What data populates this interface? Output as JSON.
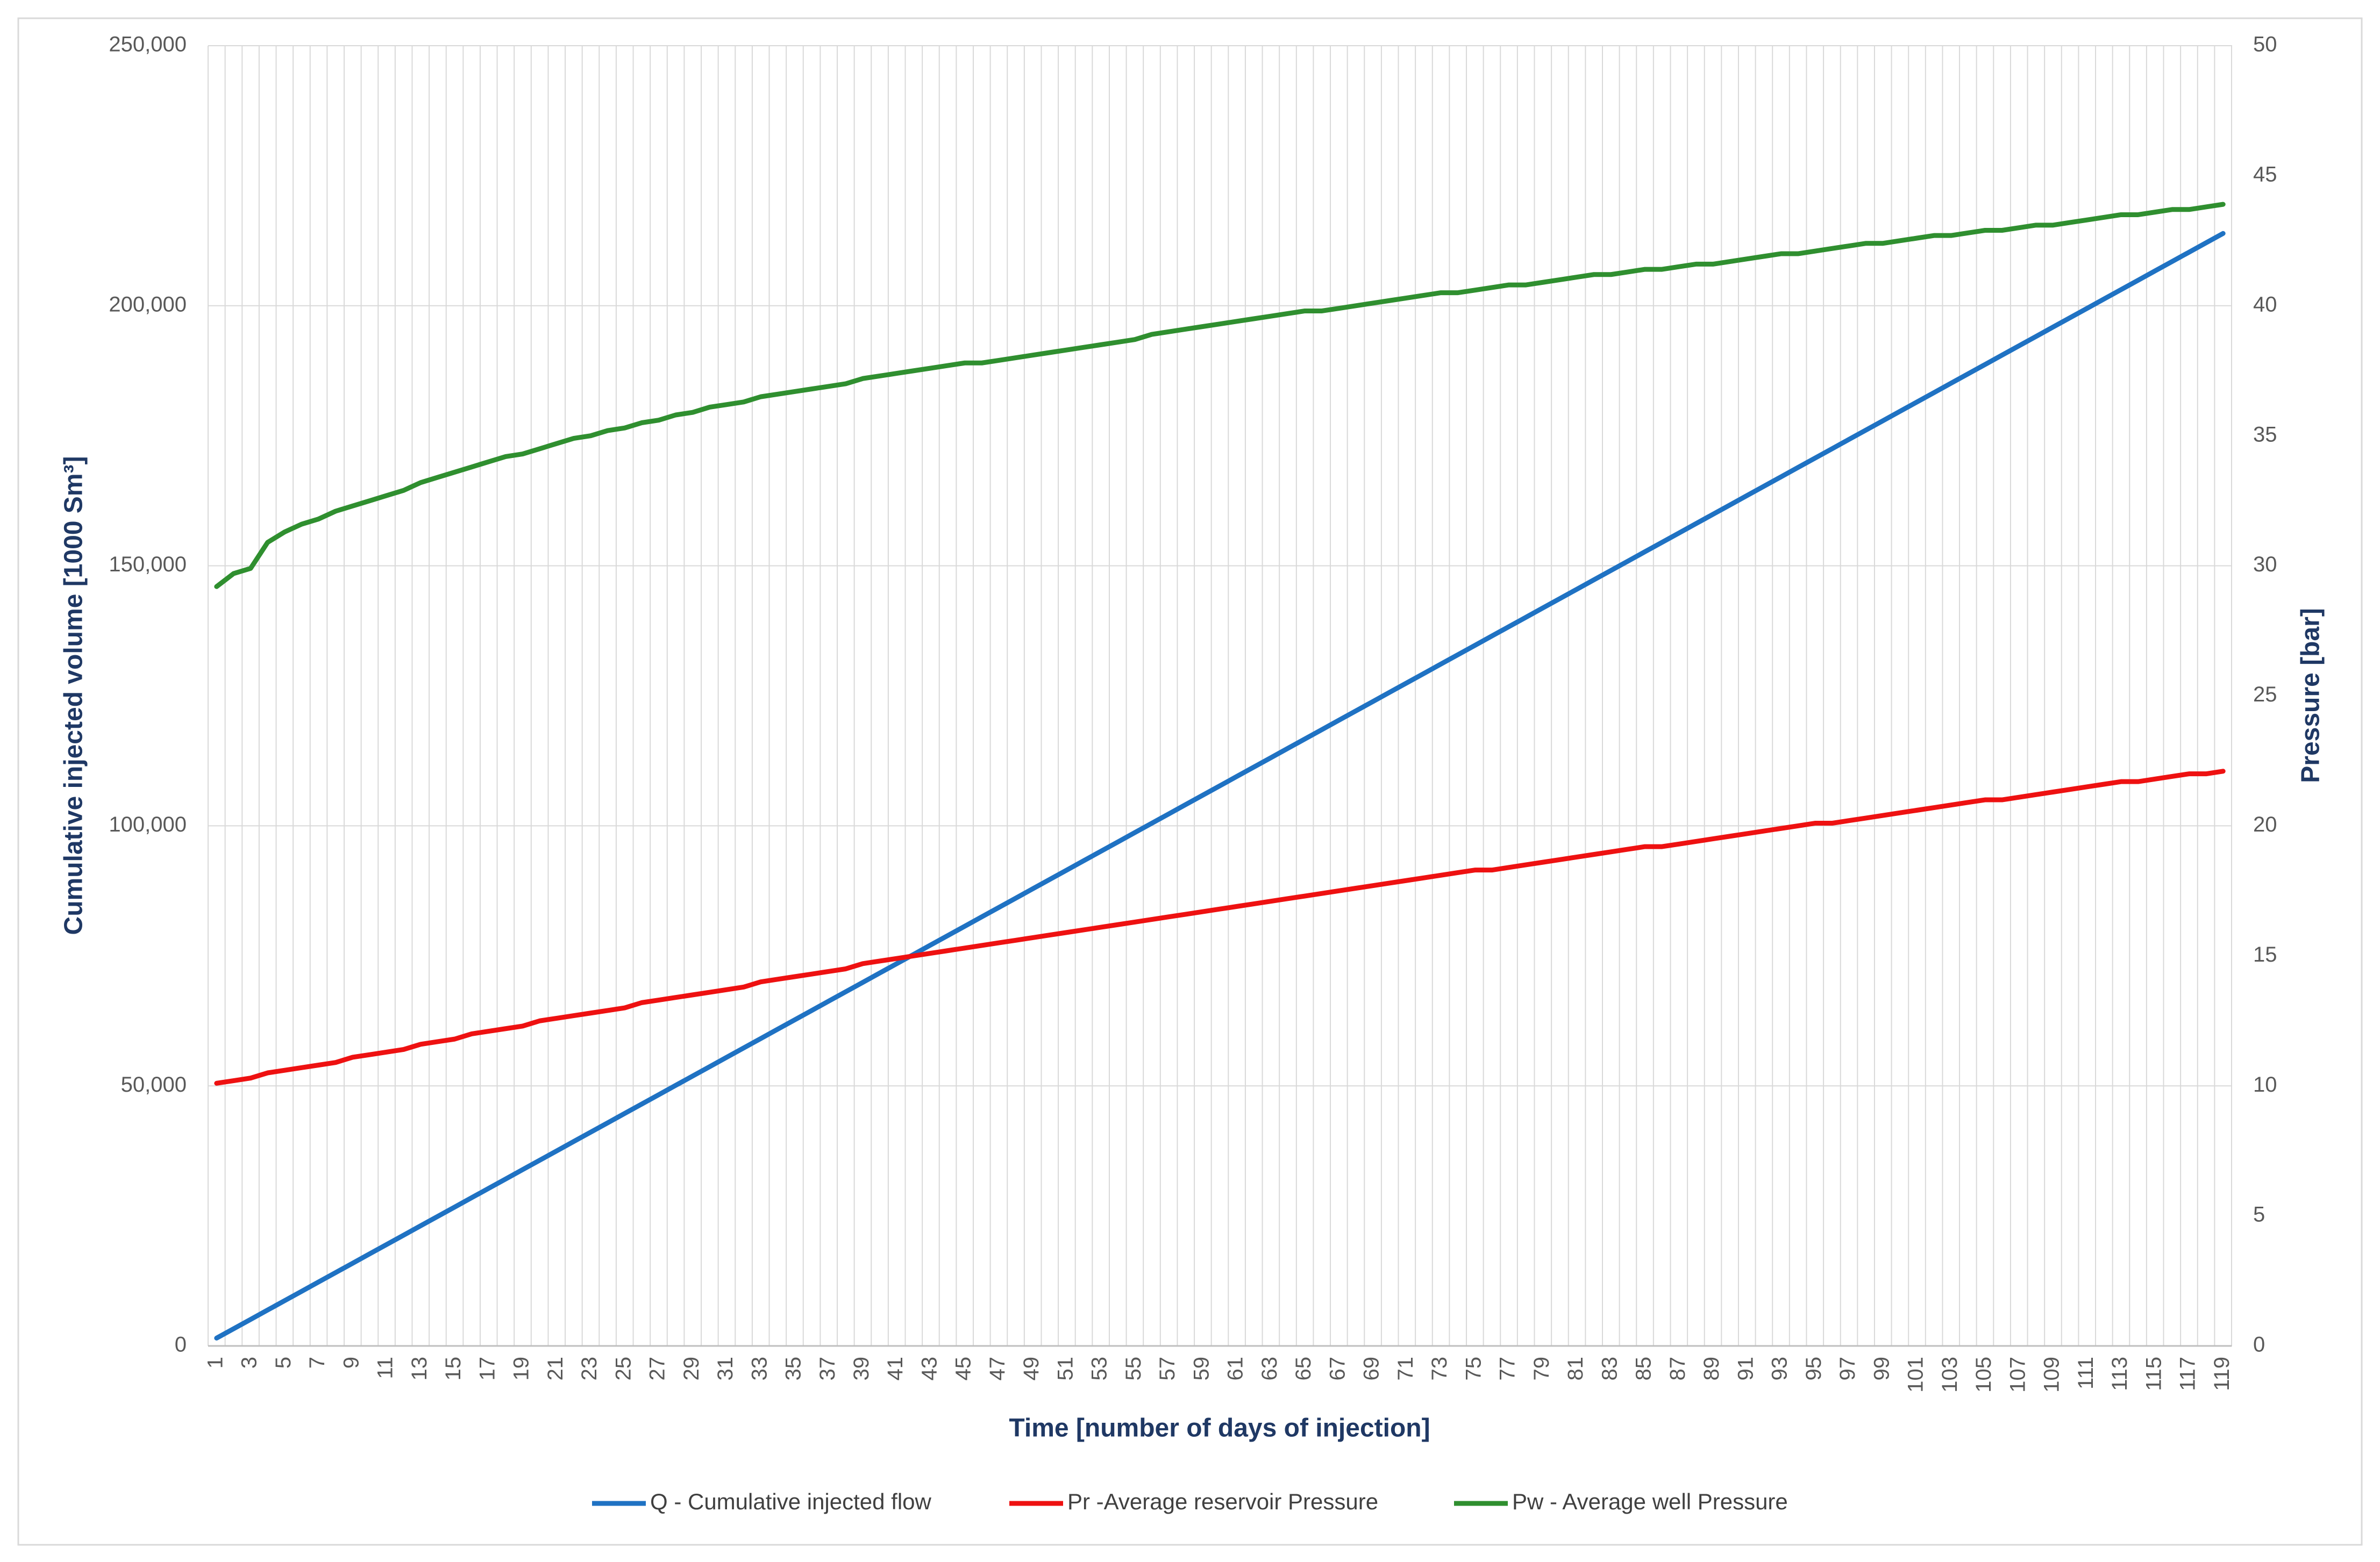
{
  "chart_data": {
    "type": "line",
    "x_label": "Time [number of days of injection]",
    "y_label": "Cumulative injected volume [1000 Sm³]",
    "y2_label": "Pressure [bar]",
    "categories": [
      1,
      null,
      3,
      null,
      5,
      null,
      7,
      null,
      9,
      null,
      11,
      null,
      13,
      null,
      15,
      null,
      17,
      null,
      19,
      null,
      21,
      null,
      23,
      null,
      25,
      null,
      27,
      null,
      29,
      null,
      31,
      null,
      33,
      null,
      35,
      null,
      37,
      null,
      39,
      null,
      41,
      null,
      43,
      null,
      45,
      null,
      47,
      null,
      49,
      null,
      51,
      null,
      53,
      null,
      55,
      null,
      57,
      null,
      59,
      null,
      61,
      null,
      63,
      null,
      65,
      null,
      67,
      null,
      69,
      null,
      71,
      null,
      73,
      null,
      75,
      null,
      77,
      null,
      79,
      null,
      81,
      null,
      83,
      null,
      85,
      null,
      87,
      null,
      89,
      null,
      91,
      null,
      93,
      null,
      95,
      null,
      97,
      null,
      99,
      null,
      101,
      null,
      103,
      null,
      105,
      null,
      107,
      null,
      109,
      null,
      111,
      null,
      113,
      null,
      115,
      null,
      117,
      null,
      119
    ],
    "series": [
      {
        "name": "Q - Cumulative injected flow",
        "color": "#1f72c3",
        "values": [
          1500,
          3300,
          5100,
          6900,
          8700,
          10500,
          12300,
          14100,
          15900,
          17700,
          19500,
          21300,
          23100,
          24900,
          26700,
          28500,
          30300,
          32100,
          33900,
          35700,
          37500,
          39300,
          41100,
          42900,
          44700,
          46500,
          48300,
          50100,
          51900,
          53700,
          55500,
          57300,
          59100,
          60900,
          62700,
          64500,
          66300,
          68100,
          69900,
          71700,
          73500,
          75300,
          77100,
          78900,
          80700,
          82500,
          84300,
          86100,
          87900,
          89700,
          91500,
          93300,
          95100,
          96900,
          98700,
          100500,
          102300,
          104100,
          105900,
          107700,
          109500,
          111300,
          113100,
          114900,
          116700,
          118500,
          120300,
          122100,
          123900,
          125700,
          127500,
          129300,
          131100,
          132900,
          134700,
          136500,
          138300,
          140100,
          141900,
          143700,
          145500,
          147300,
          149100,
          150900,
          152700,
          154500,
          156300,
          158100,
          159900,
          161700,
          163500,
          165300,
          167100,
          168900,
          170700,
          172500,
          174300,
          176100,
          177900,
          179700,
          181500,
          183300,
          185100,
          186900,
          188700,
          190500,
          192300,
          194100,
          195900,
          197700,
          199500,
          201300,
          203100,
          204900,
          206700,
          208500,
          210300,
          212100,
          213900
        ]
      },
      {
        "name": "Pr -Average reservoir Pressure",
        "color": "#ee1111",
        "axis": "y2",
        "values": [
          10.1,
          10.2,
          10.3,
          10.5,
          10.6,
          10.7,
          10.8,
          10.9,
          11.1,
          11.2,
          11.3,
          11.4,
          11.6,
          11.7,
          11.8,
          12.0,
          12.1,
          12.2,
          12.3,
          12.5,
          12.6,
          12.7,
          12.8,
          12.9,
          13.0,
          13.2,
          13.3,
          13.4,
          13.5,
          13.6,
          13.7,
          13.8,
          14.0,
          14.1,
          14.2,
          14.3,
          14.4,
          14.5,
          14.7,
          14.8,
          14.9,
          15.0,
          15.1,
          15.2,
          15.3,
          15.4,
          15.5,
          15.6,
          15.7,
          15.8,
          15.9,
          16.0,
          16.1,
          16.2,
          16.3,
          16.4,
          16.5,
          16.6,
          16.7,
          16.8,
          16.9,
          17.0,
          17.1,
          17.2,
          17.3,
          17.4,
          17.5,
          17.6,
          17.7,
          17.8,
          17.9,
          18.0,
          18.1,
          18.2,
          18.3,
          18.3,
          18.4,
          18.5,
          18.6,
          18.7,
          18.8,
          18.9,
          19.0,
          19.1,
          19.2,
          19.2,
          19.3,
          19.4,
          19.5,
          19.6,
          19.7,
          19.8,
          19.9,
          20.0,
          20.1,
          20.1,
          20.2,
          20.3,
          20.4,
          20.5,
          20.6,
          20.7,
          20.8,
          20.9,
          21.0,
          21.0,
          21.1,
          21.2,
          21.3,
          21.4,
          21.5,
          21.6,
          21.7,
          21.7,
          21.8,
          21.9,
          22.0,
          22.0,
          22.1
        ]
      },
      {
        "name": "Pw - Average well Pressure",
        "color": "#2f8f2f",
        "axis": "y2",
        "values": [
          29.2,
          29.7,
          29.9,
          30.9,
          31.3,
          31.6,
          31.8,
          32.1,
          32.3,
          32.5,
          32.7,
          32.9,
          33.2,
          33.4,
          33.6,
          33.8,
          34.0,
          34.2,
          34.3,
          34.5,
          34.7,
          34.9,
          35.0,
          35.2,
          35.3,
          35.5,
          35.6,
          35.8,
          35.9,
          36.1,
          36.2,
          36.3,
          36.5,
          36.6,
          36.7,
          36.8,
          36.9,
          37.0,
          37.2,
          37.3,
          37.4,
          37.5,
          37.6,
          37.7,
          37.8,
          37.8,
          37.9,
          38.0,
          38.1,
          38.2,
          38.3,
          38.4,
          38.5,
          38.6,
          38.7,
          38.9,
          39.0,
          39.1,
          39.2,
          39.3,
          39.4,
          39.5,
          39.6,
          39.7,
          39.8,
          39.8,
          39.9,
          40.0,
          40.1,
          40.2,
          40.3,
          40.4,
          40.5,
          40.5,
          40.6,
          40.7,
          40.8,
          40.8,
          40.9,
          41.0,
          41.1,
          41.2,
          41.2,
          41.3,
          41.4,
          41.4,
          41.5,
          41.6,
          41.6,
          41.7,
          41.8,
          41.9,
          42.0,
          42.0,
          42.1,
          42.2,
          42.3,
          42.4,
          42.4,
          42.5,
          42.6,
          42.7,
          42.7,
          42.8,
          42.9,
          42.9,
          43.0,
          43.1,
          43.1,
          43.2,
          43.3,
          43.4,
          43.5,
          43.5,
          43.6,
          43.7,
          43.7,
          43.8,
          43.9
        ]
      }
    ],
    "ylim": [
      0,
      250000
    ],
    "yticks": [
      0,
      {
        "value": 50000,
        "label": "50,000"
      },
      {
        "value": 100000,
        "label": "100,000"
      },
      {
        "value": 150000,
        "label": "150,000"
      },
      {
        "value": 200000,
        "label": "200,000"
      },
      {
        "value": 250000,
        "label": "250,000"
      }
    ],
    "y2lim": [
      0,
      50
    ],
    "y2ticks": [
      0,
      5,
      10,
      15,
      20,
      25,
      30,
      35,
      40,
      45,
      50
    ],
    "grid": true,
    "legend": "bottom"
  }
}
